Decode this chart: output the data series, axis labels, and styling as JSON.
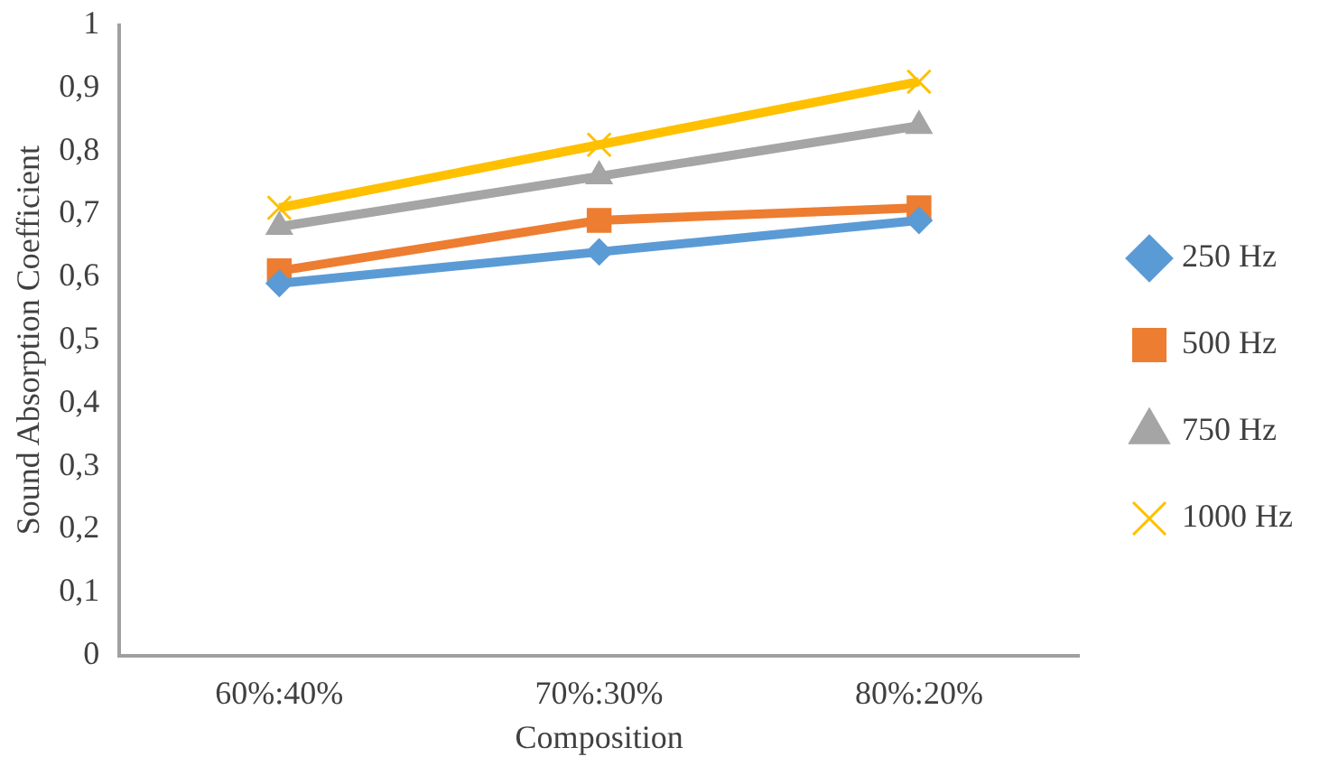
{
  "chart_data": {
    "type": "line",
    "xlabel": "Composition",
    "ylabel": "Sound Absorption Coefficient",
    "categories": [
      "60%:40%",
      "70%:30%",
      "80%:20%"
    ],
    "series": [
      {
        "name": "250 Hz",
        "color": "#5b9bd5",
        "marker": "diamond",
        "values": [
          0.59,
          0.64,
          0.69
        ]
      },
      {
        "name": "500 Hz",
        "color": "#ed7d31",
        "marker": "square",
        "values": [
          0.61,
          0.69,
          0.71
        ]
      },
      {
        "name": "750 Hz",
        "color": "#a5a5a5",
        "marker": "triangle",
        "values": [
          0.68,
          0.76,
          0.84
        ]
      },
      {
        "name": "1000 Hz",
        "color": "#ffc000",
        "marker": "cross",
        "values": [
          0.71,
          0.81,
          0.91
        ]
      }
    ],
    "ylim": [
      0,
      1
    ],
    "yticks": [
      0,
      {
        "value": 0.1,
        "label": "0,1"
      },
      {
        "value": 0.2,
        "label": "0,2"
      },
      {
        "value": 0.3,
        "label": "0,3"
      },
      {
        "value": 0.4,
        "label": "0,4"
      },
      {
        "value": 0.5,
        "label": "0,5"
      },
      {
        "value": 0.6,
        "label": "0,6"
      },
      {
        "value": 0.7,
        "label": "0,7"
      },
      {
        "value": 0.8,
        "label": "0,8"
      },
      {
        "value": 0.9,
        "label": "0,9"
      },
      1
    ],
    "grid": false,
    "legend": "right",
    "line_style": "solid"
  }
}
